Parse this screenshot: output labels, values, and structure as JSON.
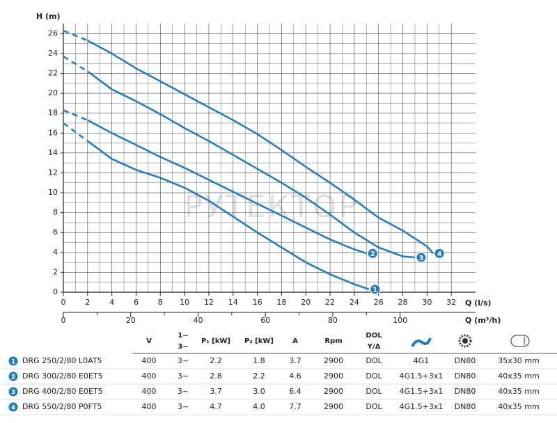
{
  "chart_data": {
    "type": "line",
    "y_label": "H (m)",
    "x_label": "Q (l/s)",
    "x2_label": "Q (m³/h)",
    "watermark": "РУТЕКТОР",
    "xlim": [
      0,
      34
    ],
    "xticks": [
      0,
      2,
      4,
      6,
      8,
      10,
      12,
      14,
      16,
      18,
      20,
      22,
      24,
      26,
      28,
      30,
      32
    ],
    "ylim": [
      0,
      27
    ],
    "yticks": [
      0,
      2,
      4,
      6,
      8,
      10,
      12,
      14,
      16,
      18,
      20,
      22,
      24,
      26
    ],
    "x2lim": [
      0,
      122.4
    ],
    "x2ticks": [
      0,
      20,
      40,
      60,
      80,
      100
    ],
    "grid": true,
    "series": [
      {
        "name": "DRG 250/2/80 L0AT5",
        "marker": "1",
        "color": "#1f7bbf",
        "x": [
          0,
          2,
          4,
          6,
          8,
          10,
          12,
          14,
          16,
          18,
          20,
          22,
          24,
          25.2
        ],
        "values": [
          17,
          15.2,
          13.4,
          12.3,
          11.5,
          10.5,
          9.2,
          7.6,
          6.0,
          4.5,
          3.0,
          1.8,
          0.8,
          0.3
        ]
      },
      {
        "name": "DRG 300/2/80 E0ET5",
        "marker": "2",
        "color": "#1f7bbf",
        "x": [
          0,
          2,
          4,
          6,
          8,
          10,
          12,
          14,
          16,
          18,
          20,
          22,
          24,
          25
        ],
        "values": [
          18.3,
          17.3,
          16.0,
          14.8,
          13.6,
          12.5,
          11.3,
          10.1,
          8.9,
          7.7,
          6.5,
          5.3,
          4.3,
          3.9
        ]
      },
      {
        "name": "DRG 400/2/80 E0ET5",
        "marker": "3",
        "color": "#1f7bbf",
        "x": [
          0,
          2,
          4,
          6,
          8,
          10,
          12,
          14,
          16,
          18,
          20,
          22,
          24,
          26,
          28,
          29
        ],
        "values": [
          23.7,
          22.2,
          20.4,
          19.2,
          17.9,
          16.5,
          15.2,
          13.8,
          12.4,
          11.0,
          9.5,
          7.8,
          6.0,
          4.5,
          3.6,
          3.5
        ]
      },
      {
        "name": "DRG 550/2/80 P0FT5",
        "marker": "4",
        "color": "#1f7bbf",
        "x": [
          0,
          2,
          4,
          6,
          8,
          10,
          12,
          14,
          16,
          18,
          20,
          22,
          24,
          26,
          28,
          30,
          30.5
        ],
        "values": [
          26.3,
          25.3,
          24.0,
          22.5,
          21.2,
          19.9,
          18.6,
          17.3,
          15.9,
          14.3,
          12.6,
          11.0,
          9.3,
          7.5,
          6.2,
          4.6,
          3.9
        ]
      }
    ]
  },
  "table": {
    "headers": [
      "V",
      [
        "1~",
        "3~"
      ],
      "P₁ [kW]",
      "P₂ [kW]",
      "A",
      "Rpm",
      [
        "DOL",
        "Y/Δ"
      ]
    ],
    "rows": [
      [
        "400",
        "3~",
        "2.2",
        "1.8",
        "3.7",
        "2900",
        "DOL",
        "4G1",
        "DN80",
        "35x30 mm"
      ],
      [
        "400",
        "3~",
        "2.8",
        "2.2",
        "4.6",
        "2900",
        "DOL",
        "4G1.5+3x1",
        "DN80",
        "40x35 mm"
      ],
      [
        "400",
        "3~",
        "3.7",
        "3.0",
        "6.4",
        "2900",
        "DOL",
        "4G1.5+3x1",
        "DN80",
        "40x35 mm"
      ],
      [
        "400",
        "3~",
        "4.7",
        "4.0",
        "7.7",
        "2900",
        "DOL",
        "4G1.5+3x1",
        "DN80",
        "40x35 mm"
      ]
    ]
  }
}
